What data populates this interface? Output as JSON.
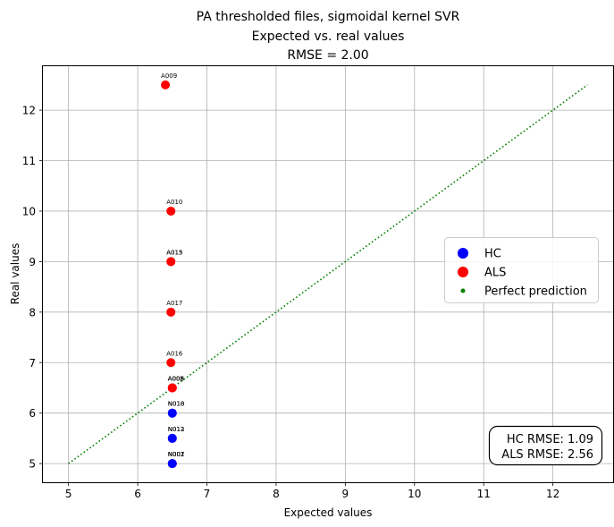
{
  "chart_data": {
    "type": "scatter",
    "title_lines": [
      "PA thresholded files, sigmoidal kernel SVR",
      "Expected vs. real values",
      "RMSE = 2.00"
    ],
    "xlabel": "Expected values",
    "ylabel": "Real values",
    "xlim": [
      4.63,
      12.87
    ],
    "ylim": [
      4.63,
      12.87
    ],
    "xticks": [
      5,
      6,
      7,
      8,
      9,
      10,
      11,
      12
    ],
    "yticks": [
      5,
      6,
      7,
      8,
      9,
      10,
      11,
      12
    ],
    "grid": true,
    "legend_position": "center-right",
    "series": [
      {
        "name": "HC",
        "color": "#0000ff",
        "points": [
          {
            "x": 6.5,
            "y": 6.0,
            "label": "N018"
          },
          {
            "x": 6.5,
            "y": 6.0,
            "label": "N010"
          },
          {
            "x": 6.5,
            "y": 5.5,
            "label": "N012"
          },
          {
            "x": 6.5,
            "y": 5.5,
            "label": "N013"
          },
          {
            "x": 6.5,
            "y": 5.0,
            "label": "N002"
          },
          {
            "x": 6.5,
            "y": 5.0,
            "label": "N007"
          },
          {
            "x": 6.5,
            "y": 5.0,
            "label": "N001"
          }
        ]
      },
      {
        "name": "ALS",
        "color": "#ff0000",
        "points": [
          {
            "x": 6.4,
            "y": 12.5,
            "label": "A009"
          },
          {
            "x": 6.48,
            "y": 10.0,
            "label": "A010"
          },
          {
            "x": 6.48,
            "y": 9.0,
            "label": "A013"
          },
          {
            "x": 6.48,
            "y": 9.0,
            "label": "A015"
          },
          {
            "x": 6.48,
            "y": 8.0,
            "label": "A017"
          },
          {
            "x": 6.48,
            "y": 7.0,
            "label": "A016"
          },
          {
            "x": 6.5,
            "y": 6.5,
            "label": "A006"
          },
          {
            "x": 6.5,
            "y": 6.5,
            "label": "A005"
          },
          {
            "x": 6.5,
            "y": 6.5,
            "label": "A008"
          }
        ]
      },
      {
        "name": "Perfect prediction",
        "color": "#008000",
        "line": [
          [
            5,
            5
          ],
          [
            12.5,
            12.5
          ]
        ]
      }
    ],
    "annotation_lines": [
      "HC RMSE: 1.09",
      "ALS RMSE: 2.56"
    ]
  }
}
